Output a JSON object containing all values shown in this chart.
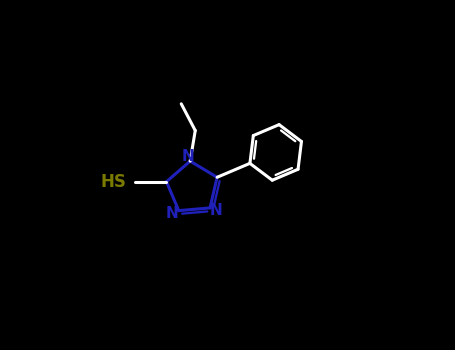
{
  "background_color": "#000000",
  "ring_color": "#2020bb",
  "sh_color": "#7a7a00",
  "white": "#ffffff",
  "figsize": [
    4.55,
    3.5
  ],
  "dpi": 100,
  "xlim": [
    -3.0,
    4.0
  ],
  "ylim": [
    -2.5,
    3.0
  ]
}
